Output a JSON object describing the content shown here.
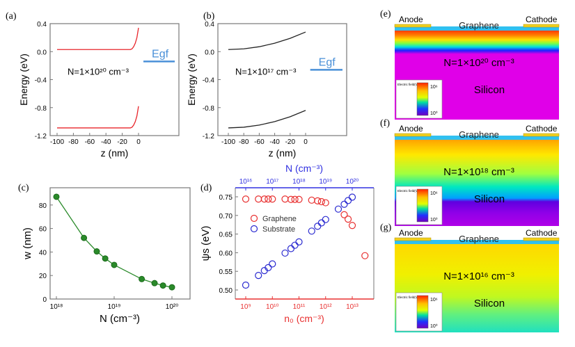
{
  "chart_data": [
    {
      "panel": "(a)",
      "type": "line",
      "xlabel": "z (nm)",
      "ylabel": "Energy (eV)",
      "xlim": [
        -108,
        50
      ],
      "ylim": [
        -1.2,
        0.4
      ],
      "xticks": [
        "-100",
        "-80",
        "-60",
        "-40",
        "-20",
        "0"
      ],
      "yticks": [
        "0.4",
        "0.0",
        "-0.4",
        "-0.8",
        "-1.2"
      ],
      "annotation": "N=1×10²⁰ cm⁻³",
      "egf_label": "Egf",
      "egf_value": -0.14,
      "color": "#e8242a",
      "series": [
        {
          "x": [
            -100,
            -10,
            -8,
            -6,
            -4,
            -2,
            0
          ],
          "y": [
            0.03,
            0.03,
            0.04,
            0.07,
            0.12,
            0.2,
            0.34
          ]
        },
        {
          "x": [
            -100,
            -10,
            -8,
            -6,
            -4,
            -2,
            0
          ],
          "y": [
            -1.09,
            -1.09,
            -1.08,
            -1.05,
            -1.0,
            -0.92,
            -0.78
          ]
        }
      ]
    },
    {
      "panel": "(b)",
      "type": "line",
      "xlabel": "z (nm)",
      "ylabel": "Energy (eV)",
      "xlim": [
        -113,
        52
      ],
      "ylim": [
        -1.2,
        0.4
      ],
      "xticks": [
        "-100",
        "-80",
        "-60",
        "-40",
        "-20",
        "0"
      ],
      "yticks": [
        "0.4",
        "0.0",
        "-0.4",
        "-0.8",
        "-1.2"
      ],
      "annotation": "N=1×10¹⁷ cm⁻³",
      "egf_label": "Egf",
      "egf_value": -0.26,
      "color": "#222222",
      "series": [
        {
          "x": [
            -100,
            -80,
            -60,
            -40,
            -20,
            0
          ],
          "y": [
            0.03,
            0.04,
            0.07,
            0.12,
            0.19,
            0.28
          ]
        },
        {
          "x": [
            -100,
            -80,
            -60,
            -40,
            -20,
            0
          ],
          "y": [
            -1.09,
            -1.08,
            -1.05,
            -1.0,
            -0.93,
            -0.84
          ]
        }
      ]
    },
    {
      "panel": "(c)",
      "type": "scatter",
      "xlabel": "N (cm⁻³)",
      "ylabel": "w (nm)",
      "xscale": "log",
      "ylim": [
        0,
        95
      ],
      "xticks": [
        "10¹⁸",
        "10¹⁹",
        "10²⁰"
      ],
      "yticks": [
        "0",
        "20",
        "40",
        "60",
        "80"
      ],
      "color": "#2a8a2a",
      "x": [
        1e+18,
        3e+18,
        5e+18,
        7e+18,
        1e+19,
        3e+19,
        5e+19,
        7e+19,
        1e+20
      ],
      "y": [
        87,
        52,
        40.5,
        34.5,
        29,
        17,
        13.5,
        11.5,
        10
      ]
    },
    {
      "panel": "(d)",
      "type": "scatter",
      "xlabel": "n₀ (cm⁻³)",
      "x2label": "N (cm⁻³)",
      "ylabel": "ψs (eV)",
      "xscale": "log",
      "ylim": [
        0.475,
        0.775
      ],
      "xticks": [
        "10⁹",
        "10¹⁰",
        "10¹¹",
        "10¹²",
        "10¹³"
      ],
      "x2ticks": [
        "10¹⁶",
        "10¹⁷",
        "10¹⁸",
        "10¹⁹",
        "10²⁰"
      ],
      "yticks": [
        "0.50",
        "0.55",
        "0.60",
        "0.65",
        "0.70",
        "0.75"
      ],
      "legend": "center-left",
      "series": [
        {
          "name": "Graphene",
          "color": "#e83030",
          "x": [
            1000000000.0,
            3000000000.0,
            5000000000.0,
            7000000000.0,
            10000000000.0,
            30000000000.0,
            50000000000.0,
            70000000000.0,
            100000000000.0,
            300000000000.0,
            500000000000.0,
            700000000000.0,
            1000000000000.0,
            5000000000000.0,
            7000000000000.0,
            10000000000000.0,
            30000000000000.0
          ],
          "y": [
            0.744,
            0.744,
            0.744,
            0.744,
            0.744,
            0.744,
            0.743,
            0.743,
            0.743,
            0.741,
            0.739,
            0.737,
            0.734,
            0.702,
            0.69,
            0.673,
            0.592
          ]
        },
        {
          "name": "Substrate",
          "color": "#2a2ad0",
          "x": [
            1000000000.0,
            3000000000.0,
            5000000000.0,
            7000000000.0,
            10000000000.0,
            30000000000.0,
            50000000000.0,
            70000000000.0,
            100000000000.0,
            300000000000.0,
            500000000000.0,
            700000000000.0,
            1000000000000.0,
            3000000000000.0,
            5000000000000.0,
            7000000000000.0,
            10000000000000.0
          ],
          "y": [
            0.513,
            0.539,
            0.552,
            0.56,
            0.57,
            0.599,
            0.611,
            0.62,
            0.629,
            0.658,
            0.671,
            0.68,
            0.689,
            0.717,
            0.73,
            0.74,
            0.749
          ]
        }
      ]
    }
  ],
  "maps": [
    {
      "panel": "(e)",
      "anode": "Anode",
      "cathode": "Cathode",
      "graphene": "Graphene",
      "doping": "N=1×10²⁰ cm⁻³",
      "material": "Silicon",
      "colorbar_title": "Electric field(V/cm)",
      "cb_max": "10⁶",
      "cb_min": "10⁰"
    },
    {
      "panel": "(f)",
      "anode": "Anode",
      "cathode": "Cathode",
      "graphene": "Graphene",
      "doping": "N=1×10¹⁸ cm⁻³",
      "material": "Silicon",
      "colorbar_title": "Electric field(V/cm)",
      "cb_max": "10⁶",
      "cb_min": "10⁰"
    },
    {
      "panel": "(g)",
      "anode": "Anode",
      "cathode": "Cathode",
      "graphene": "Graphene",
      "doping": "N=1×10¹⁶ cm⁻³",
      "material": "Silicon",
      "colorbar_title": "Electric field(V/cm)",
      "cb_max": "10⁶",
      "cb_min": "10⁰"
    }
  ]
}
